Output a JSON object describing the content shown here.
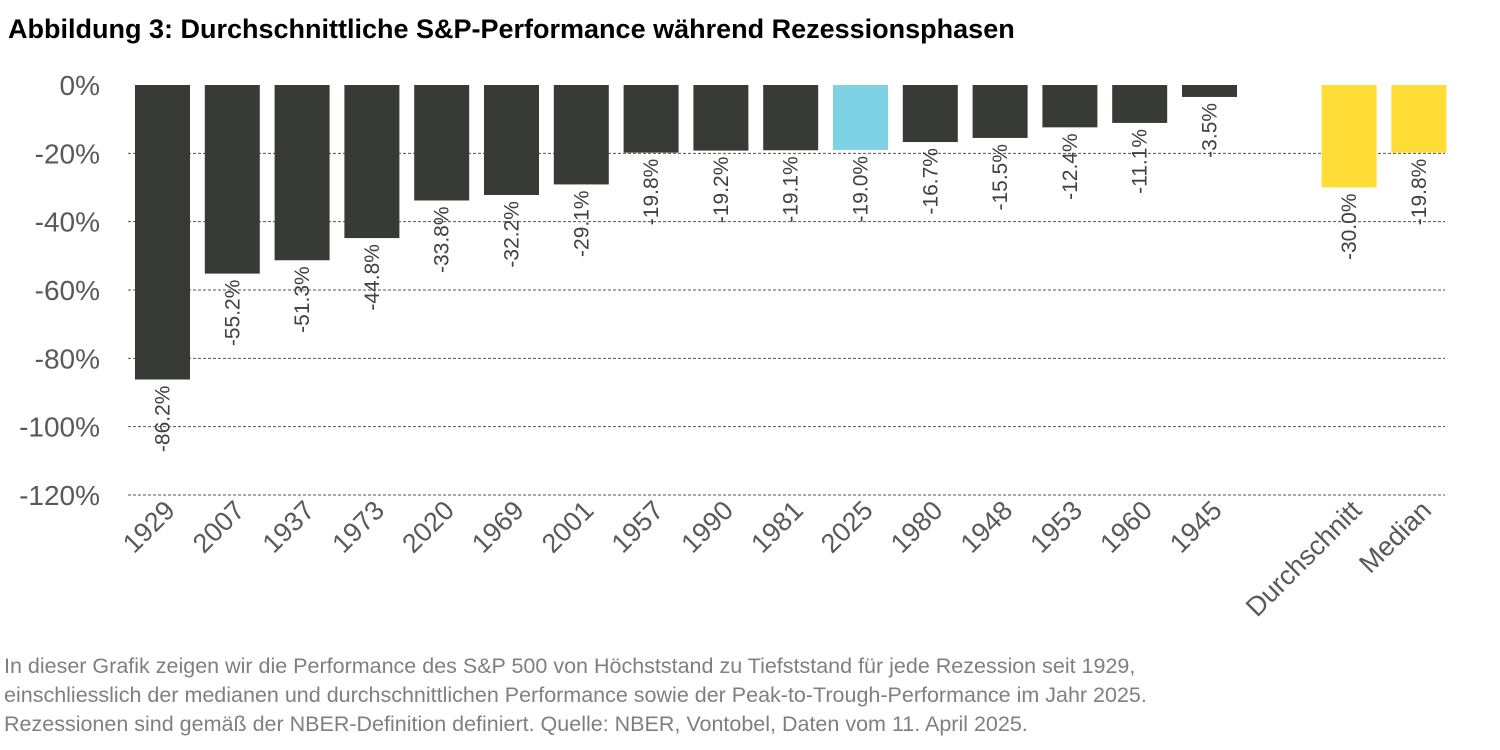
{
  "title": "Abbildung 3: Durchschnittliche S&P-Performance während Rezessionsphasen",
  "footnote": [
    "In dieser Grafik zeigen wir die Performance des S&P 500 von Höchststand zu Tiefststand für jede Rezession seit 1929,",
    "einschliesslich der medianen und durchschnittlichen Performance sowie der Peak-to-Trough-Performance im Jahr 2025.",
    "Rezessionen sind gemäß der NBER-Definition definiert. Quelle: NBER, Vontobel, Daten vom 11. April 2025."
  ],
  "colors": {
    "default": "#383a37",
    "highlight": "#7dd3e3",
    "summary": "#ffdc36",
    "grid": "#555555",
    "axis_text": "#595959",
    "label_text": "#404040"
  },
  "chart_data": {
    "type": "bar",
    "title": "Abbildung 3: Durchschnittliche S&P-Performance während Rezessionsphasen",
    "xlabel": "",
    "ylabel": "",
    "ylim": [
      -120,
      0
    ],
    "yticks": [
      0,
      -20,
      -40,
      -60,
      -80,
      -100,
      -120
    ],
    "ytick_labels": [
      "0%",
      "-20%",
      "-40%",
      "-60%",
      "-80%",
      "-100%",
      "-120%"
    ],
    "grid": true,
    "categories": [
      "1929",
      "2007",
      "1937",
      "1973",
      "2020",
      "1969",
      "2001",
      "1957",
      "1990",
      "1981",
      "2025",
      "1980",
      "1948",
      "1953",
      "1960",
      "1945",
      "",
      "Durchschnitt",
      "Median"
    ],
    "values": [
      -86.2,
      -55.2,
      -51.3,
      -44.8,
      -33.8,
      -32.2,
      -29.1,
      -19.8,
      -19.2,
      -19.1,
      -19.0,
      -16.7,
      -15.5,
      -12.4,
      -11.1,
      -3.5,
      null,
      -30.0,
      -19.8
    ],
    "data_labels": [
      "-86.2%",
      "-55.2%",
      "-51.3%",
      "-44.8%",
      "-33.8%",
      "-32.2%",
      "-29.1%",
      "-19.8%",
      "-19.2%",
      "-19.1%",
      "-19.0%",
      "-16.7%",
      "-15.5%",
      "-12.4%",
      "-11.1%",
      "-3.5%",
      "",
      "-30.0%",
      "-19.8%"
    ],
    "bar_color_keys": [
      "default",
      "default",
      "default",
      "default",
      "default",
      "default",
      "default",
      "default",
      "default",
      "default",
      "highlight",
      "default",
      "default",
      "default",
      "default",
      "default",
      "default",
      "summary",
      "summary"
    ]
  }
}
